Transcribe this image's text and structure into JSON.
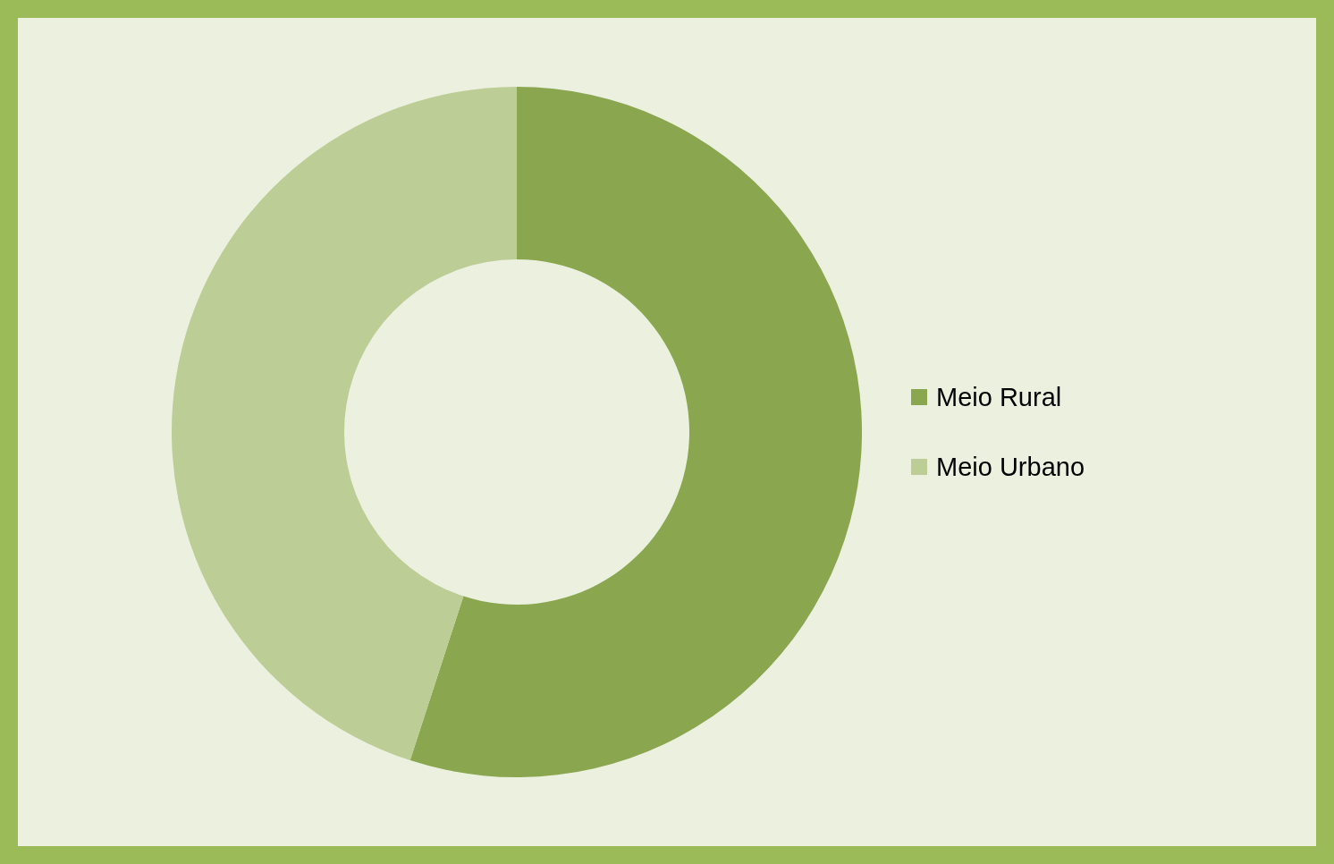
{
  "chart_data": {
    "type": "donut",
    "categories": [
      "Meio Rural",
      "Meio Urbano"
    ],
    "values": [
      55,
      45
    ],
    "colors": [
      "#8aa64e",
      "#bccd96"
    ],
    "legend": "right"
  }
}
